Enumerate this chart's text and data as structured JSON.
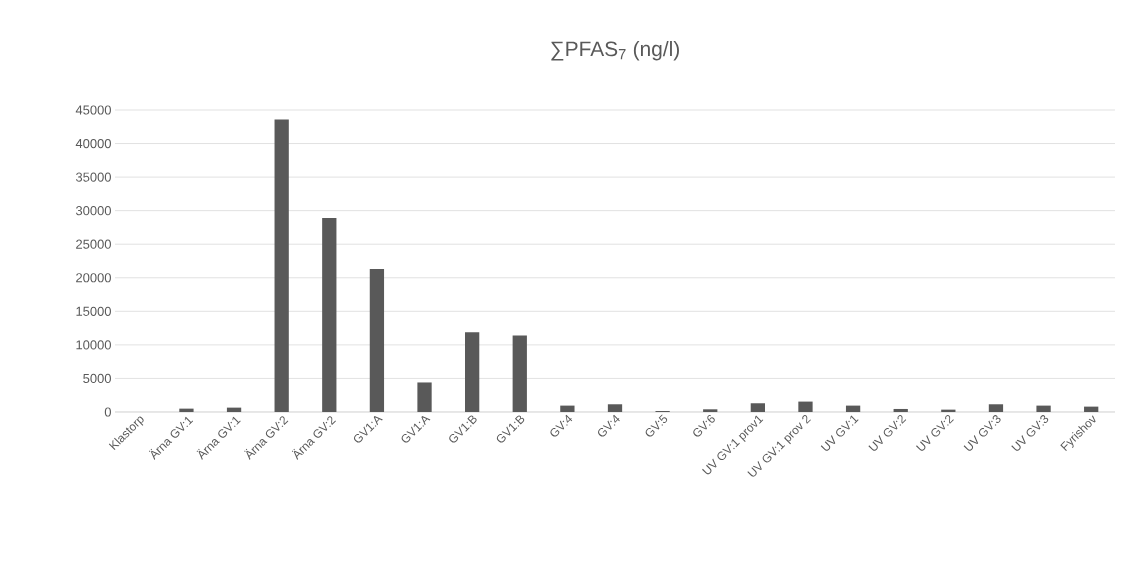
{
  "chart_data": {
    "type": "bar",
    "title": "∑PFAS$_{7}$ (ng/l)",
    "categories": [
      "Klastorp",
      "Ärna GV:1",
      "Ärna GV:1",
      "Ärna GV:2",
      "Ärna GV:2",
      "GV1:A",
      "GV1:A",
      "GV1:B",
      "GV1:B",
      "GV:4",
      "GV:4",
      "GV:5",
      "GV:6",
      "UV GV:1 prov1",
      "UV GV:1 prov 2",
      "UV GV:1",
      "UV GV:2",
      "UV GV:2",
      "UV GV:3",
      "UV GV:3",
      "Fyrishov"
    ],
    "values": [
      0,
      500,
      650,
      43600,
      28900,
      21300,
      4400,
      11900,
      11400,
      950,
      1150,
      150,
      400,
      1300,
      1550,
      950,
      450,
      350,
      1150,
      950,
      800
    ],
    "color": "#595959",
    "ylim": [
      0,
      45000
    ],
    "yticks": [
      0,
      5000,
      10000,
      15000,
      20000,
      25000,
      30000,
      35000,
      40000,
      45000
    ],
    "grid": "y"
  }
}
